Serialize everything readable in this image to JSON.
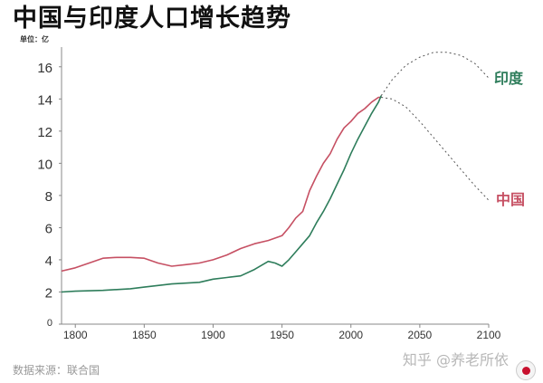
{
  "header": {
    "title": "中国与印度人口增长趋势",
    "unit_label": "单位：亿"
  },
  "footer": {
    "source": "数据来源：联合国",
    "watermark": "知乎 @养老所依"
  },
  "colors": {
    "china": "#c65063",
    "india": "#2e7d5b",
    "axis": "#888888",
    "grid": "#eeeeee"
  },
  "chart_data": {
    "type": "line",
    "title": "中国与印度人口增长趋势",
    "ylabel": "单位：亿",
    "xlim": [
      1790,
      2100
    ],
    "ylim": [
      0,
      17
    ],
    "x_ticks": [
      1800,
      1850,
      1900,
      1950,
      2000,
      2050,
      2100
    ],
    "y_ticks": [
      0,
      2,
      4,
      6,
      8,
      10,
      12,
      14,
      16
    ],
    "grid": false,
    "series": [
      {
        "name": "中国",
        "color": "#c65063",
        "historical": [
          [
            1790,
            3.3
          ],
          [
            1800,
            3.5
          ],
          [
            1810,
            3.8
          ],
          [
            1820,
            4.1
          ],
          [
            1830,
            4.15
          ],
          [
            1840,
            4.15
          ],
          [
            1850,
            4.1
          ],
          [
            1860,
            3.8
          ],
          [
            1870,
            3.6
          ],
          [
            1880,
            3.7
          ],
          [
            1890,
            3.8
          ],
          [
            1900,
            4.0
          ],
          [
            1910,
            4.3
          ],
          [
            1920,
            4.7
          ],
          [
            1930,
            5.0
          ],
          [
            1940,
            5.2
          ],
          [
            1950,
            5.5
          ],
          [
            1955,
            6.0
          ],
          [
            1960,
            6.6
          ],
          [
            1965,
            7.0
          ],
          [
            1970,
            8.3
          ],
          [
            1975,
            9.2
          ],
          [
            1980,
            10.0
          ],
          [
            1985,
            10.6
          ],
          [
            1990,
            11.5
          ],
          [
            1995,
            12.2
          ],
          [
            2000,
            12.6
          ],
          [
            2005,
            13.1
          ],
          [
            2010,
            13.4
          ],
          [
            2015,
            13.8
          ],
          [
            2020,
            14.1
          ],
          [
            2022,
            14.1
          ]
        ],
        "projection": [
          [
            2022,
            14.1
          ],
          [
            2030,
            14.0
          ],
          [
            2040,
            13.5
          ],
          [
            2050,
            12.6
          ],
          [
            2060,
            11.6
          ],
          [
            2070,
            10.6
          ],
          [
            2080,
            9.6
          ],
          [
            2090,
            8.6
          ],
          [
            2100,
            7.7
          ]
        ]
      },
      {
        "name": "印度",
        "color": "#2e7d5b",
        "historical": [
          [
            1790,
            2.0
          ],
          [
            1800,
            2.05
          ],
          [
            1820,
            2.1
          ],
          [
            1840,
            2.2
          ],
          [
            1850,
            2.3
          ],
          [
            1870,
            2.5
          ],
          [
            1890,
            2.6
          ],
          [
            1900,
            2.8
          ],
          [
            1910,
            2.9
          ],
          [
            1920,
            3.0
          ],
          [
            1930,
            3.4
          ],
          [
            1940,
            3.9
          ],
          [
            1945,
            3.8
          ],
          [
            1950,
            3.6
          ],
          [
            1955,
            4.0
          ],
          [
            1960,
            4.5
          ],
          [
            1965,
            5.0
          ],
          [
            1970,
            5.5
          ],
          [
            1975,
            6.3
          ],
          [
            1980,
            7.0
          ],
          [
            1985,
            7.8
          ],
          [
            1990,
            8.7
          ],
          [
            1995,
            9.6
          ],
          [
            2000,
            10.6
          ],
          [
            2005,
            11.5
          ],
          [
            2010,
            12.3
          ],
          [
            2015,
            13.1
          ],
          [
            2020,
            13.8
          ],
          [
            2022,
            14.2
          ]
        ],
        "projection": [
          [
            2022,
            14.2
          ],
          [
            2030,
            15.2
          ],
          [
            2040,
            16.1
          ],
          [
            2050,
            16.6
          ],
          [
            2060,
            16.9
          ],
          [
            2070,
            16.9
          ],
          [
            2080,
            16.7
          ],
          [
            2090,
            16.2
          ],
          [
            2100,
            15.3
          ]
        ]
      }
    ],
    "annotations": [
      {
        "text": "印度",
        "x": 2100,
        "y": 15.3
      },
      {
        "text": "中国",
        "x": 2100,
        "y": 7.7
      }
    ]
  }
}
